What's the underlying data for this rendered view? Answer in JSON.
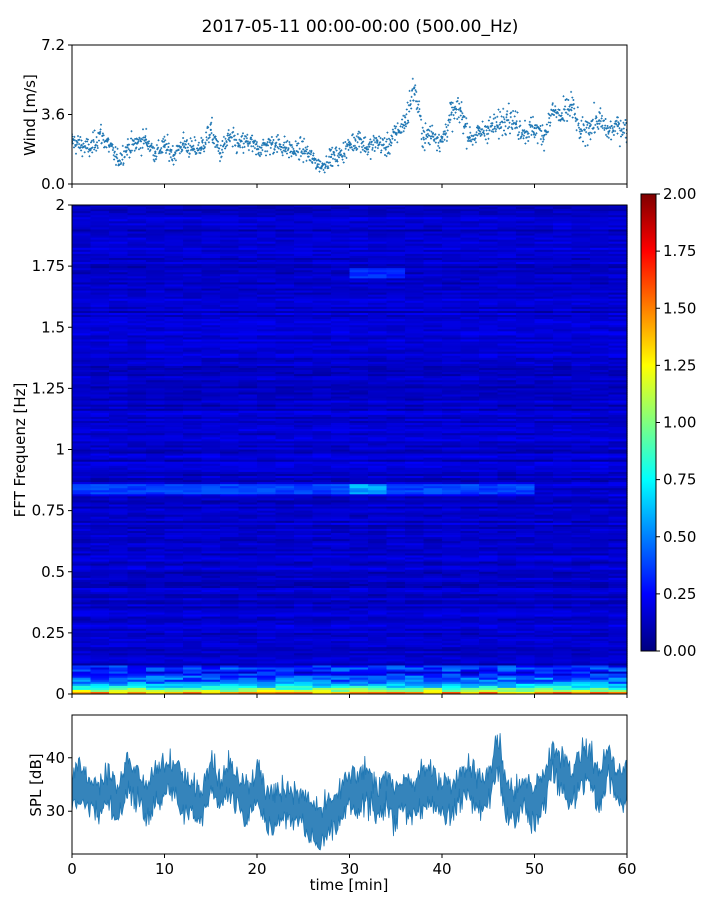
{
  "chart_data": [
    {
      "type": "scatter",
      "title": "2017-05-11 00:00-00:00 (500.00_Hz)",
      "ylabel": "Wind [m/s]",
      "xlim": [
        0,
        60
      ],
      "ylim": [
        0,
        7.2
      ],
      "yticks": [
        "0.0",
        "3.6",
        "7.2"
      ],
      "color": "#1f77b4",
      "series": [
        {
          "x": [
            0,
            1,
            2,
            3,
            4,
            5,
            6,
            7,
            8,
            9,
            10,
            11,
            12,
            13,
            14,
            15,
            16,
            17,
            18,
            19,
            20,
            21,
            22,
            23,
            24,
            25,
            26,
            27,
            28,
            29,
            30,
            31,
            32,
            33,
            34,
            35,
            36,
            37,
            38,
            39,
            40,
            41,
            42,
            43,
            44,
            45,
            46,
            47,
            48,
            49,
            50,
            51,
            52,
            53,
            54,
            55,
            56,
            57,
            58,
            59,
            60
          ],
          "y": [
            2.2,
            2.0,
            1.8,
            2.6,
            2.0,
            1.2,
            1.9,
            2.1,
            2.3,
            1.6,
            2.0,
            1.5,
            2.1,
            1.8,
            1.9,
            2.8,
            1.6,
            2.4,
            2.0,
            2.2,
            1.8,
            2.0,
            2.1,
            1.9,
            1.7,
            1.8,
            1.3,
            0.9,
            1.4,
            1.5,
            2.0,
            2.4,
            1.8,
            2.2,
            1.9,
            2.6,
            3.2,
            5.0,
            2.4,
            2.6,
            2.2,
            3.6,
            3.8,
            2.4,
            2.6,
            2.9,
            3.0,
            3.6,
            3.1,
            2.7,
            2.9,
            2.5,
            3.8,
            3.4,
            4.1,
            2.6,
            3.0,
            3.3,
            2.7,
            3.0,
            2.8
          ]
        }
      ]
    },
    {
      "type": "heatmap",
      "ylabel": "FFT Frequenz [Hz]",
      "xlim": [
        0,
        60
      ],
      "ylim": [
        0,
        2
      ],
      "yticks": [
        "0",
        "0.25",
        "0.5",
        "0.75",
        "1",
        "1.25",
        "1.5",
        "1.75",
        "2"
      ],
      "colormap": "jet",
      "colorbar": {
        "vmin": 0.0,
        "vmax": 2.0,
        "ticks": [
          "0.00",
          "0.25",
          "0.50",
          "0.75",
          "1.00",
          "1.25",
          "1.50",
          "1.75",
          "2.00"
        ]
      },
      "typical_value_above_0.1Hz": 0.15,
      "features": [
        {
          "freq_hz": 0.01,
          "value": 1.6,
          "note": "near 0 Hz: values up to 2.0"
        },
        {
          "freq_hz": 0.05,
          "value": 0.7
        },
        {
          "freq_hz": 0.1,
          "value": 0.35
        },
        {
          "freq_hz": 0.84,
          "value": 0.4,
          "t_min": [
            0,
            50
          ]
        },
        {
          "freq_hz": 0.84,
          "value": 0.6,
          "t_min": [
            31,
            34
          ]
        },
        {
          "freq_hz": 1.72,
          "value": 0.35,
          "t_min": [
            31,
            35
          ]
        }
      ]
    },
    {
      "type": "area",
      "ylabel": "SPL [dB]",
      "xlabel": "time [min]",
      "xlim": [
        0,
        60
      ],
      "ylim": [
        22,
        48
      ],
      "xticks": [
        "0",
        "10",
        "20",
        "30",
        "40",
        "50",
        "60"
      ],
      "yticks": [
        "30",
        "40"
      ],
      "color": "#1f77b4",
      "series": [
        {
          "x": [
            0,
            1,
            2,
            3,
            4,
            5,
            6,
            7,
            8,
            9,
            10,
            11,
            12,
            13,
            14,
            15,
            16,
            17,
            18,
            19,
            20,
            21,
            22,
            23,
            24,
            25,
            26,
            27,
            28,
            29,
            30,
            31,
            32,
            33,
            34,
            35,
            36,
            37,
            38,
            39,
            40,
            41,
            42,
            43,
            44,
            45,
            46,
            47,
            48,
            49,
            50,
            51,
            52,
            53,
            54,
            55,
            56,
            57,
            58,
            59,
            60
          ],
          "y": [
            34,
            36,
            33,
            32,
            35,
            31,
            37,
            35,
            32,
            34,
            36,
            37,
            33,
            32,
            31,
            38,
            33,
            36,
            34,
            32,
            35,
            31,
            30,
            32,
            31,
            30,
            28,
            27,
            29,
            31,
            34,
            33,
            35,
            32,
            34,
            31,
            33,
            32,
            35,
            34,
            33,
            32,
            35,
            36,
            33,
            34,
            41,
            32,
            31,
            33,
            31,
            34,
            40,
            37,
            34,
            38,
            39,
            33,
            40,
            34,
            35
          ],
          "band": 3
        }
      ]
    }
  ]
}
